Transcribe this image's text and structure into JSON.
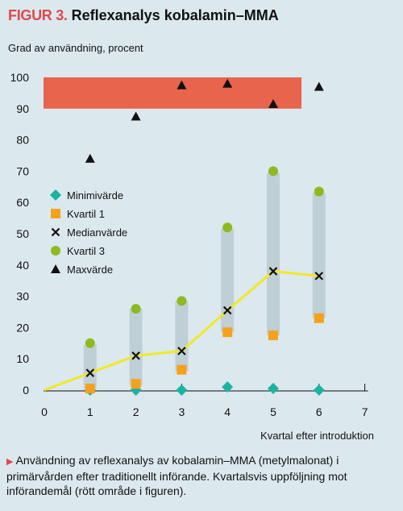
{
  "header": {
    "figure_label": "FIGUR 3.",
    "title": "Reflexanalys kobalamin–MMA"
  },
  "caption": {
    "marker": "▶",
    "text": "Användning av reflexanalys av kobalamin–MMA (metylmalonat) i primärvården efter traditionellt införande. Kvartalsvis uppföljning mot införandemål (rött område i figuren)."
  },
  "colors": {
    "target_zone": "#e8644c",
    "iqr_bar": "#bfcfd6",
    "median_line": "#f3e726",
    "min": "#1bb3a2",
    "q1": "#f6a11a",
    "median_marker": "#111111",
    "q3": "#8fb91e",
    "max": "#111111"
  },
  "chart_data": {
    "type": "scatter",
    "title": "",
    "xlabel": "Kvartal efter introduktion",
    "ylabel": "Grad av användning, procent",
    "xlim": [
      0,
      7
    ],
    "ylim": [
      0,
      100
    ],
    "xticks": [
      0,
      1,
      2,
      3,
      4,
      5,
      6,
      7
    ],
    "yticks": [
      0,
      10,
      20,
      30,
      40,
      50,
      60,
      70,
      80,
      90,
      100
    ],
    "target_zone": [
      90,
      100
    ],
    "iqr_bars": [
      {
        "x": 1,
        "low": 0.5,
        "high": 14.5
      },
      {
        "x": 2,
        "low": 1.5,
        "high": 26
      },
      {
        "x": 3,
        "low": 6,
        "high": 28.5
      },
      {
        "x": 4,
        "low": 18.5,
        "high": 51.5
      },
      {
        "x": 5,
        "low": 17.5,
        "high": 69.5
      },
      {
        "x": 6,
        "low": 23,
        "high": 63
      }
    ],
    "median_line": {
      "x": [
        0,
        1,
        2,
        3,
        4,
        5,
        6
      ],
      "y": [
        0,
        5.5,
        11,
        12.5,
        25.5,
        38,
        36.5
      ]
    },
    "series": [
      {
        "name": "Minimivärde",
        "marker": "diamond",
        "x": [
          1,
          2,
          3,
          4,
          5,
          6
        ],
        "y": [
          0,
          0,
          0,
          1,
          0.5,
          0
        ]
      },
      {
        "name": "Kvartil 1",
        "marker": "square",
        "x": [
          1,
          2,
          3,
          4,
          5,
          6
        ],
        "y": [
          0.5,
          2,
          6.5,
          18.5,
          17.5,
          23
        ]
      },
      {
        "name": "Medianvärde",
        "marker": "cross",
        "x": [
          1,
          2,
          3,
          4,
          5,
          6
        ],
        "y": [
          5.5,
          11,
          12.5,
          25.5,
          38,
          36.5
        ]
      },
      {
        "name": "Kvartil 3",
        "marker": "circle",
        "x": [
          1,
          2,
          3,
          4,
          5,
          6
        ],
        "y": [
          15,
          26,
          28.5,
          52,
          70,
          63.5
        ]
      },
      {
        "name": "Maxvärde",
        "marker": "triangle",
        "x": [
          1,
          2,
          3,
          4,
          5,
          6
        ],
        "y": [
          74,
          87.5,
          97.5,
          98,
          91.5,
          97
        ]
      }
    ],
    "grid": false,
    "legend_position": "upper-left"
  }
}
